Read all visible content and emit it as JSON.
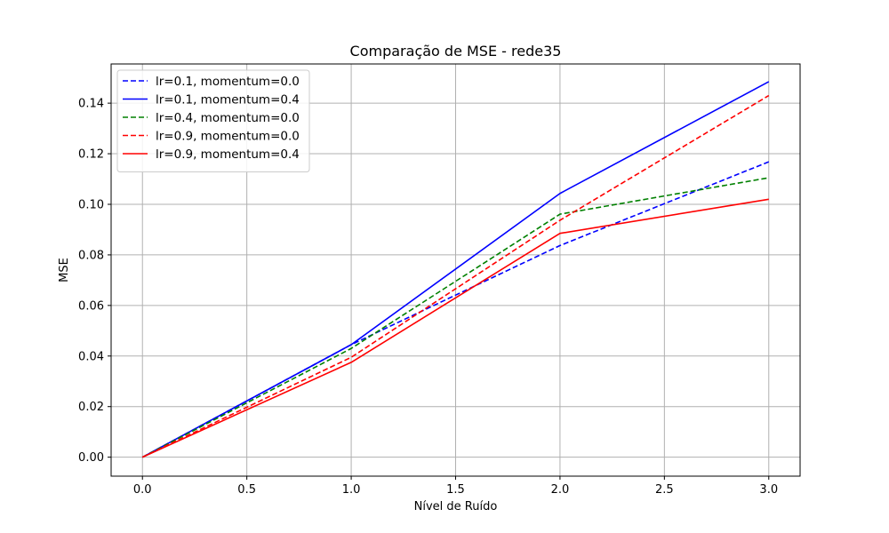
{
  "chart_data": {
    "type": "line",
    "title": "Comparação de MSE - rede35",
    "xlabel": "Nível de Ruído",
    "ylabel": "MSE",
    "xlim": [
      -0.15,
      3.15
    ],
    "ylim": [
      -0.0075,
      0.1555
    ],
    "x_ticks": [
      "0.0",
      "0.5",
      "1.0",
      "1.5",
      "2.0",
      "2.5",
      "3.0"
    ],
    "y_ticks": [
      "0.00",
      "0.02",
      "0.04",
      "0.06",
      "0.08",
      "0.10",
      "0.12",
      "0.14"
    ],
    "grid": true,
    "legend_position": "top-left",
    "x": [
      0.0,
      1.0,
      2.0,
      3.0
    ],
    "series": [
      {
        "name": "lr=0.1, momentum=0.0",
        "values": [
          0.0,
          0.0445,
          0.0837,
          0.1168
        ],
        "color": "#0000ff",
        "dash": "dashed"
      },
      {
        "name": "lr=0.1, momentum=0.4",
        "values": [
          0.0,
          0.0445,
          0.1043,
          0.1485
        ],
        "color": "#0000ff",
        "dash": "solid"
      },
      {
        "name": "lr=0.4, momentum=0.0",
        "values": [
          0.0,
          0.043,
          0.0961,
          0.1105
        ],
        "color": "#008000",
        "dash": "dashed"
      },
      {
        "name": "lr=0.9, momentum=0.0",
        "values": [
          0.0,
          0.0395,
          0.0937,
          0.143
        ],
        "color": "#ff0000",
        "dash": "dashed"
      },
      {
        "name": "lr=0.9, momentum=0.4",
        "values": [
          0.0,
          0.0375,
          0.0885,
          0.102
        ],
        "color": "#ff0000",
        "dash": "solid"
      }
    ]
  }
}
